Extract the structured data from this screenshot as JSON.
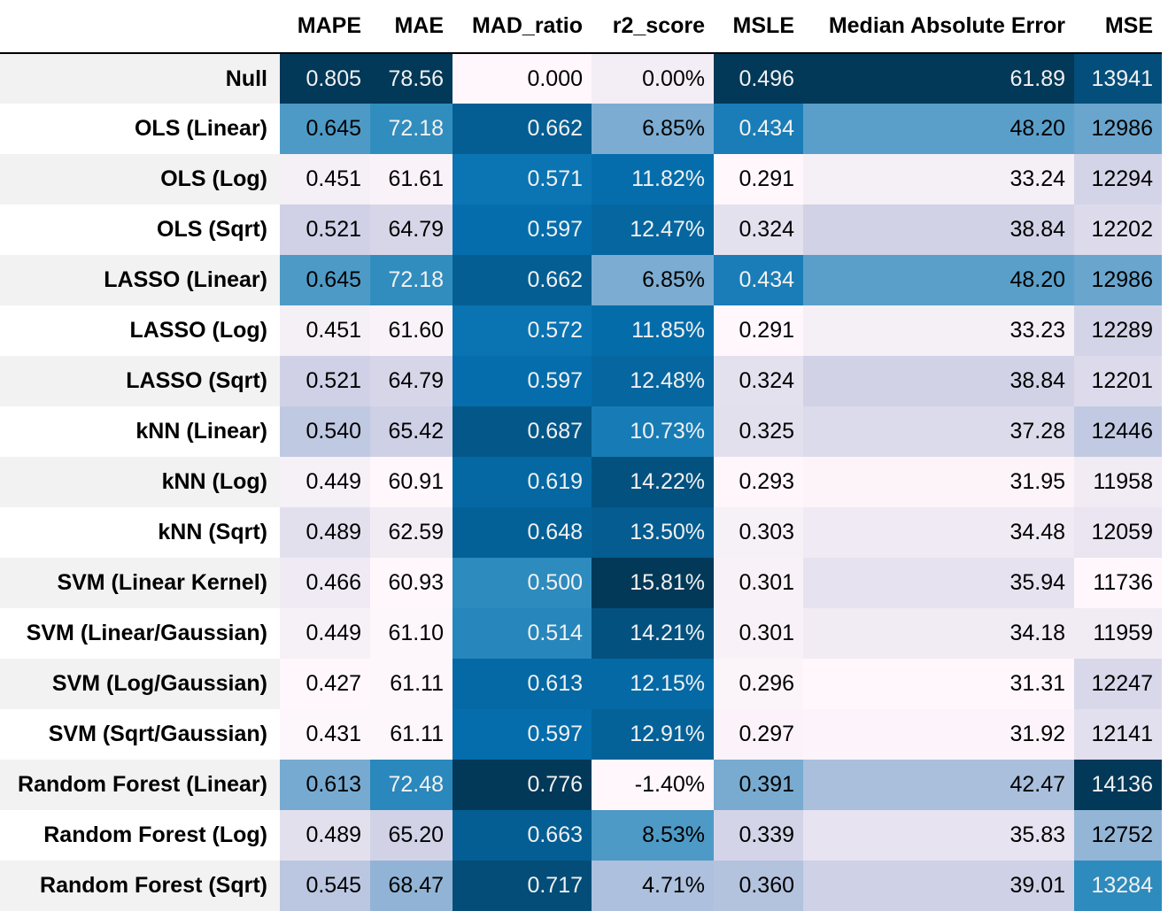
{
  "chart_data": {
    "type": "table",
    "columns": [
      "MAPE",
      "MAE",
      "MAD_ratio",
      "r2_score",
      "MSLE",
      "Median Absolute Error",
      "MSE"
    ],
    "rows": [
      {
        "label": "Null",
        "values": [
          "0.805",
          "78.56",
          "0.000",
          "0.00%",
          "0.496",
          "61.89",
          "13941"
        ]
      },
      {
        "label": "OLS (Linear)",
        "values": [
          "0.645",
          "72.18",
          "0.662",
          "6.85%",
          "0.434",
          "48.20",
          "12986"
        ]
      },
      {
        "label": "OLS (Log)",
        "values": [
          "0.451",
          "61.61",
          "0.571",
          "11.82%",
          "0.291",
          "33.24",
          "12294"
        ]
      },
      {
        "label": "OLS (Sqrt)",
        "values": [
          "0.521",
          "64.79",
          "0.597",
          "12.47%",
          "0.324",
          "38.84",
          "12202"
        ]
      },
      {
        "label": "LASSO (Linear)",
        "values": [
          "0.645",
          "72.18",
          "0.662",
          "6.85%",
          "0.434",
          "48.20",
          "12986"
        ]
      },
      {
        "label": "LASSO (Log)",
        "values": [
          "0.451",
          "61.60",
          "0.572",
          "11.85%",
          "0.291",
          "33.23",
          "12289"
        ]
      },
      {
        "label": "LASSO (Sqrt)",
        "values": [
          "0.521",
          "64.79",
          "0.597",
          "12.48%",
          "0.324",
          "38.84",
          "12201"
        ]
      },
      {
        "label": "kNN (Linear)",
        "values": [
          "0.540",
          "65.42",
          "0.687",
          "10.73%",
          "0.325",
          "37.28",
          "12446"
        ]
      },
      {
        "label": "kNN (Log)",
        "values": [
          "0.449",
          "60.91",
          "0.619",
          "14.22%",
          "0.293",
          "31.95",
          "11958"
        ]
      },
      {
        "label": "kNN (Sqrt)",
        "values": [
          "0.489",
          "62.59",
          "0.648",
          "13.50%",
          "0.303",
          "34.48",
          "12059"
        ]
      },
      {
        "label": "SVM (Linear Kernel)",
        "values": [
          "0.466",
          "60.93",
          "0.500",
          "15.81%",
          "0.301",
          "35.94",
          "11736"
        ]
      },
      {
        "label": "SVM (Linear/Gaussian)",
        "values": [
          "0.449",
          "61.10",
          "0.514",
          "14.21%",
          "0.301",
          "34.18",
          "11959"
        ]
      },
      {
        "label": "SVM (Log/Gaussian)",
        "values": [
          "0.427",
          "61.11",
          "0.613",
          "12.15%",
          "0.296",
          "31.31",
          "12247"
        ]
      },
      {
        "label": "SVM (Sqrt/Gaussian)",
        "values": [
          "0.431",
          "61.11",
          "0.597",
          "12.91%",
          "0.297",
          "31.92",
          "12141"
        ]
      },
      {
        "label": "Random Forest (Linear)",
        "values": [
          "0.613",
          "72.48",
          "0.776",
          "-1.40%",
          "0.391",
          "42.47",
          "14136"
        ]
      },
      {
        "label": "Random Forest (Log)",
        "values": [
          "0.489",
          "65.20",
          "0.663",
          "8.53%",
          "0.339",
          "35.83",
          "12752"
        ]
      },
      {
        "label": "Random Forest (Sqrt)",
        "values": [
          "0.545",
          "68.47",
          "0.717",
          "4.71%",
          "0.360",
          "39.01",
          "13284"
        ]
      }
    ],
    "colormap": [
      "#fff7fb",
      "#ece7f2",
      "#d0d1e6",
      "#a6bddb",
      "#74a9cf",
      "#3690c0",
      "#0570b0",
      "#045a8d",
      "#023858"
    ]
  }
}
